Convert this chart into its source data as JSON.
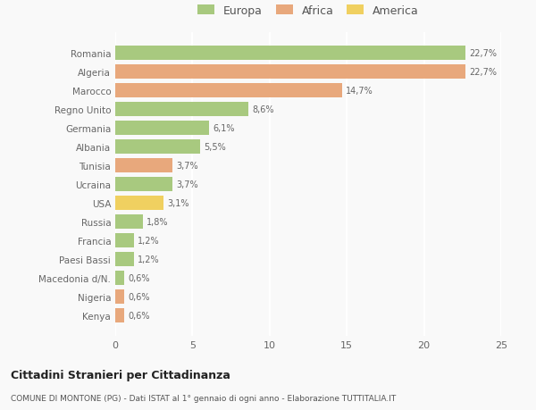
{
  "countries": [
    "Romania",
    "Algeria",
    "Marocco",
    "Regno Unito",
    "Germania",
    "Albania",
    "Tunisia",
    "Ucraina",
    "USA",
    "Russia",
    "Francia",
    "Paesi Bassi",
    "Macedonia d/N.",
    "Nigeria",
    "Kenya"
  ],
  "values": [
    22.7,
    22.7,
    14.7,
    8.6,
    6.1,
    5.5,
    3.7,
    3.7,
    3.1,
    1.8,
    1.2,
    1.2,
    0.6,
    0.6,
    0.6
  ],
  "labels": [
    "22,7%",
    "22,7%",
    "14,7%",
    "8,6%",
    "6,1%",
    "5,5%",
    "3,7%",
    "3,7%",
    "3,1%",
    "1,8%",
    "1,2%",
    "1,2%",
    "0,6%",
    "0,6%",
    "0,6%"
  ],
  "colors": [
    "#a8c97f",
    "#e8a87c",
    "#e8a87c",
    "#a8c97f",
    "#a8c97f",
    "#a8c97f",
    "#e8a87c",
    "#a8c97f",
    "#f0d060",
    "#a8c97f",
    "#a8c97f",
    "#a8c97f",
    "#a8c97f",
    "#e8a87c",
    "#e8a87c"
  ],
  "legend": {
    "Europa": "#a8c97f",
    "Africa": "#e8a87c",
    "America": "#f0d060"
  },
  "title": "Cittadini Stranieri per Cittadinanza",
  "subtitle": "COMUNE DI MONTONE (PG) - Dati ISTAT al 1° gennaio di ogni anno - Elaborazione TUTTITALIA.IT",
  "xlim": [
    0,
    25
  ],
  "xticks": [
    0,
    5,
    10,
    15,
    20,
    25
  ],
  "bg_color": "#f9f9f9",
  "grid_color": "#ffffff",
  "bar_height": 0.75
}
